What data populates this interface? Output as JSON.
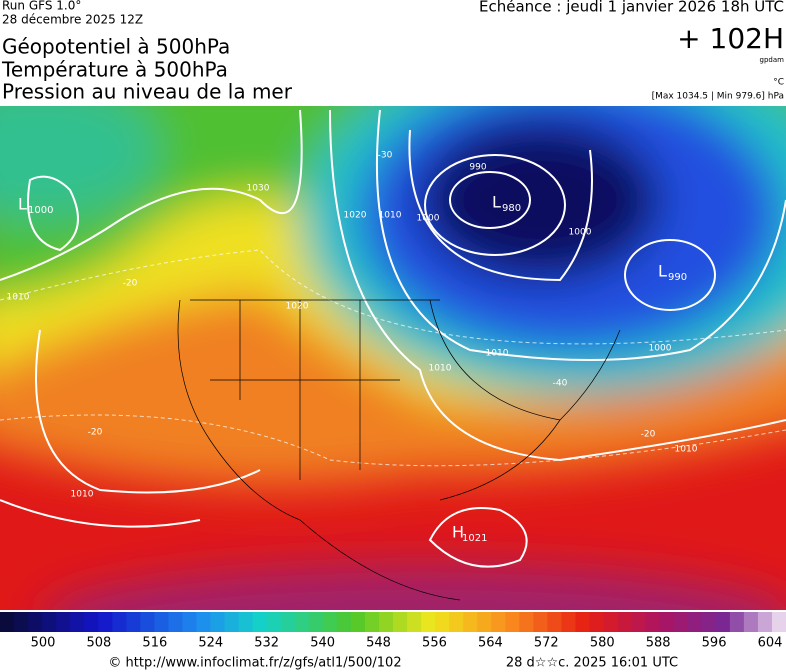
{
  "header": {
    "run": "Run GFS 1.0°",
    "date": "28 décembre 2025 12Z",
    "titles": [
      "Géopotentiel à 500hPa",
      "Température à 500hPa",
      "Pression au niveau de la mer"
    ],
    "valid": "Echéance : jeudi 1 janvier 2026 18h UTC",
    "lead": "+ 102H",
    "unit": "gpdam",
    "temp_unit": "°C",
    "pressure_range": "[Max 1034.5 | Min 979.6] hPa"
  },
  "map": {
    "centers": [
      {
        "type": "L",
        "value": "1000"
      },
      {
        "type": "L",
        "value": "980"
      },
      {
        "type": "L",
        "value": "990"
      },
      {
        "type": "H",
        "value": "1021"
      }
    ],
    "contour_labels": [
      "990",
      "1000",
      "1000",
      "1010",
      "1020",
      "1030",
      "1020",
      "1010",
      "1010",
      "1000",
      "1010",
      "1010",
      "-20",
      "-20",
      "-30",
      "-40",
      "-20",
      "1010"
    ]
  },
  "colorbar": {
    "ticks": [
      500,
      508,
      516,
      524,
      532,
      540,
      548,
      556,
      564,
      572,
      580,
      588,
      596,
      604
    ]
  },
  "footer": {
    "source": "© http://www.infoclimat.fr/z/gfs/atl1/500/102",
    "generated": "28 d☆☆c. 2025 16:01 UTC"
  }
}
